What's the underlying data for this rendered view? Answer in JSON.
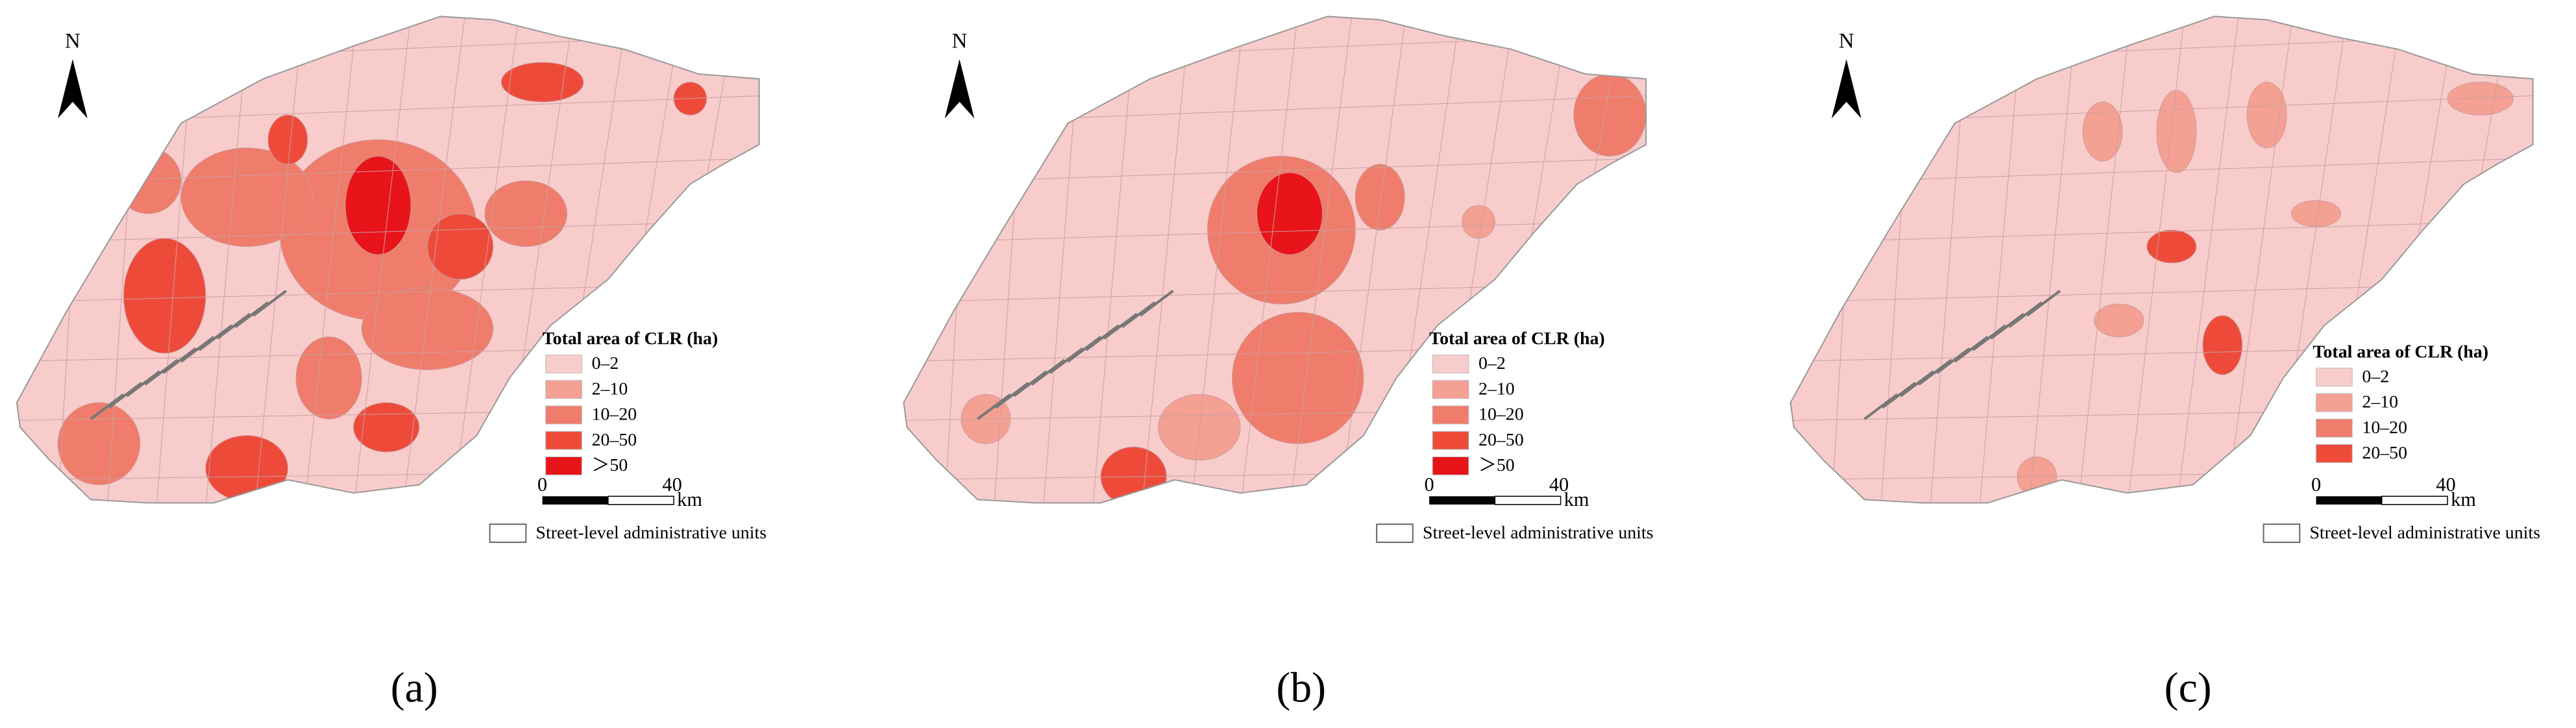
{
  "panels": [
    {
      "label": "(a)",
      "north": "N",
      "legend": {
        "title": "Total area of CLR (ha)",
        "classes": [
          "0–2",
          "2–10",
          "10–20",
          "20–50",
          "＞50"
        ],
        "colors": [
          "#f9cccc",
          "#f4a093",
          "#f07c6b",
          "#ee4a3a",
          "#e8141a"
        ]
      },
      "scale": {
        "start": "0",
        "end": "40",
        "unit": "km"
      },
      "boundary_legend": "Street-level administrative units"
    },
    {
      "label": "(b)",
      "north": "N",
      "legend": {
        "title": "Total area of CLR (ha)",
        "classes": [
          "0–2",
          "2–10",
          "10–20",
          "20–50",
          "＞50"
        ],
        "colors": [
          "#f9cccc",
          "#f4a093",
          "#f07c6b",
          "#ee4a3a",
          "#e8141a"
        ]
      },
      "scale": {
        "start": "0",
        "end": "40",
        "unit": "km"
      },
      "boundary_legend": "Street-level administrative units"
    },
    {
      "label": "(c)",
      "north": "N",
      "legend": {
        "title": "Total area of CLR (ha)",
        "classes": [
          "0–2",
          "2–10",
          "10–20",
          "20–50"
        ],
        "colors": [
          "#f9cccc",
          "#f4a093",
          "#f07c6b",
          "#ee4a3a"
        ]
      },
      "scale": {
        "start": "0",
        "end": "40",
        "unit": "km"
      },
      "boundary_legend": "Street-level administrative units"
    }
  ]
}
